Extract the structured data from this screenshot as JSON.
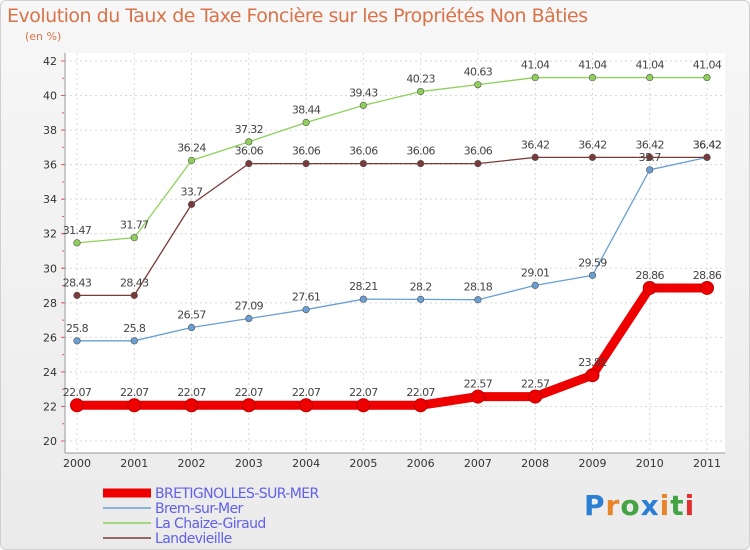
{
  "title": "Evolution du Taux de Taxe Foncière sur les Propriétés Non Bâties",
  "subtitle": "(en %)",
  "brand": {
    "text": "Proxiti",
    "colors": [
      "#2a7fd4",
      "#e8842a",
      "#44a444",
      "#2a7fd4",
      "#e8842a",
      "#44a444",
      "#e03030"
    ]
  },
  "chart_data": {
    "type": "line",
    "title": "Evolution du Taux de Taxe Foncière sur les Propriétés Non Bâties",
    "ylabel": "(en %)",
    "xlabel": "",
    "x": [
      "2000",
      "2001",
      "2002",
      "2003",
      "2004",
      "2005",
      "2006",
      "2007",
      "2008",
      "2009",
      "2010",
      "2011"
    ],
    "ylim": [
      20,
      42
    ],
    "yticks": [
      20,
      22,
      24,
      26,
      28,
      30,
      32,
      34,
      36,
      38,
      40,
      42
    ],
    "grid": true,
    "legend": "bottom-left",
    "series": [
      {
        "name": "BRETIGNOLLES-SUR-MER",
        "color": "#ee0000",
        "values": [
          22.07,
          22.07,
          22.07,
          22.07,
          22.07,
          22.07,
          22.07,
          22.57,
          22.57,
          23.81,
          28.86,
          28.86
        ],
        "labels": [
          "22.07",
          "22.07",
          "22.07",
          "22.07",
          "22.07",
          "22.07",
          "22.07",
          "22.57",
          "22.57",
          "23.81",
          "28.86",
          "28.86"
        ]
      },
      {
        "name": "Brem-sur-Mer",
        "color": "#6a9fd4",
        "values": [
          25.8,
          25.8,
          26.57,
          27.09,
          27.61,
          28.21,
          28.2,
          28.18,
          29.01,
          29.59,
          35.7,
          36.42
        ],
        "labels": [
          "25.8",
          "25.8",
          "26.57",
          "27.09",
          "27.61",
          "28.21",
          "28.2",
          "28.18",
          "29.01",
          "29.59",
          "35.7",
          "36.42"
        ]
      },
      {
        "name": "La Chaize-Giraud",
        "color": "#8ed05a",
        "values": [
          31.47,
          31.77,
          36.24,
          37.32,
          38.44,
          39.43,
          40.23,
          40.63,
          41.04,
          41.04,
          41.04,
          41.04
        ],
        "labels": [
          "31.47",
          "31.77",
          "36.24",
          "37.32",
          "38.44",
          "39.43",
          "40.23",
          "40.63",
          "41.04",
          "41.04",
          "41.04",
          "41.04"
        ]
      },
      {
        "name": "Landevieille",
        "color": "#7a3a3a",
        "values": [
          28.43,
          28.43,
          33.7,
          36.06,
          36.06,
          36.06,
          36.06,
          36.06,
          36.42,
          36.42,
          36.42,
          36.42
        ],
        "labels": [
          "28.43",
          "28.43",
          "33.7",
          "36.06",
          "36.06",
          "36.06",
          "36.06",
          "36.06",
          "36.42",
          "36.42",
          "36.42",
          "36.42"
        ]
      }
    ]
  }
}
